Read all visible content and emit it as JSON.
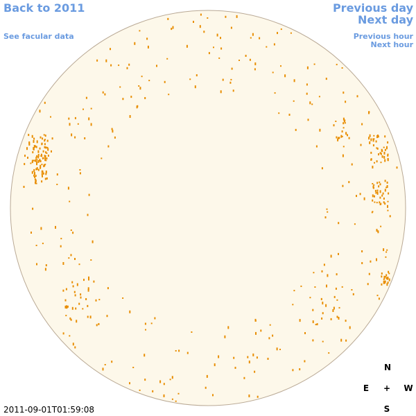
{
  "nav": {
    "back_year": "Back to 2011",
    "facular_data": "See facular data",
    "previous_day": "Previous day",
    "next_day": "Next day",
    "previous_hour": "Previous hour",
    "next_hour": "Next hour"
  },
  "timestamp": "2011-09-01T01:59:08",
  "compass": {
    "north": "N",
    "east": "E",
    "center": "+",
    "west": "W",
    "south": "S"
  }
}
